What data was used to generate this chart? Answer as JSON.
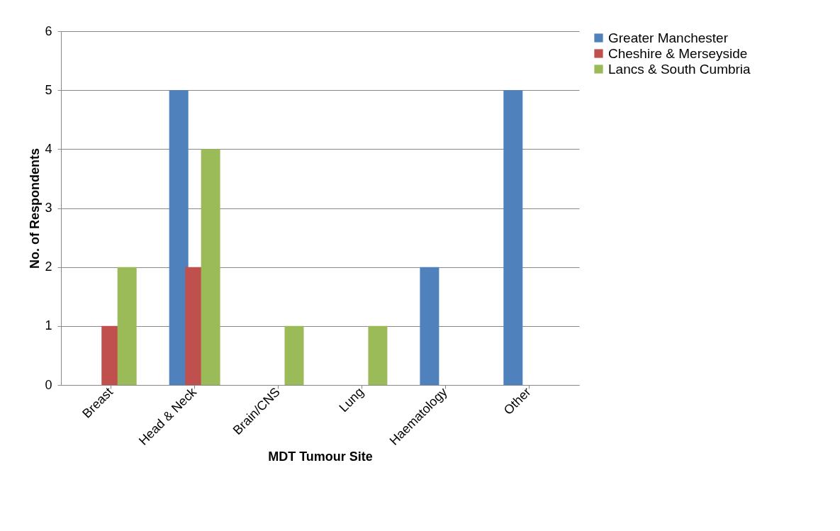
{
  "chart_data": {
    "type": "bar",
    "xlabel": "MDT Tumour Site",
    "ylabel": "No. of Respondents",
    "categories": [
      "Breast",
      "Head & Neck",
      "Brain/CNS",
      "Lung",
      "Haematology",
      "Other"
    ],
    "series": [
      {
        "name": "Greater Manchester",
        "color": "#4f81bd",
        "values": [
          0,
          5,
          0,
          0,
          2,
          5
        ]
      },
      {
        "name": "Cheshire & Merseyside",
        "color": "#c0504d",
        "values": [
          1,
          2,
          0,
          0,
          0,
          0
        ]
      },
      {
        "name": "Lancs & South Cumbria",
        "color": "#9bbb59",
        "values": [
          2,
          4,
          1,
          1,
          0,
          0
        ]
      }
    ],
    "ylim": [
      0,
      6
    ],
    "yticks": [
      0,
      1,
      2,
      3,
      4,
      5,
      6
    ],
    "grid": "y",
    "legend": "right"
  }
}
